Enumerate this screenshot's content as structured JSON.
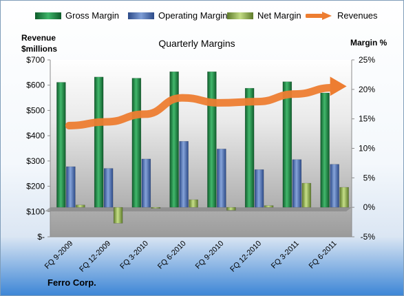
{
  "chart_data": {
    "type": "bar",
    "title": "Quarterly Margins",
    "ylabel_left": "Revenue $millions",
    "ylabel_right": "Margin %",
    "categories": [
      "FQ 9-2009",
      "FQ 12-2009",
      "FQ 3-2010",
      "FQ 6-2010",
      "FQ 9-2010",
      "FQ 12-2010",
      "FQ 3-2011",
      "FQ 6-2011"
    ],
    "ylim_left": [
      0,
      700
    ],
    "ylim_right": [
      -5,
      25
    ],
    "left_ticks": [
      "$-",
      "$100",
      "$200",
      "$300",
      "$400",
      "$500",
      "$600",
      "$700"
    ],
    "right_ticks": [
      "-5%",
      "0%",
      "5%",
      "10%",
      "15%",
      "20%",
      "25%"
    ],
    "grid": false,
    "legend_position": "top",
    "series": [
      {
        "name": "Gross Margin",
        "axis": "right",
        "color": "#1f8a43",
        "values": [
          21.2,
          22.1,
          21.9,
          23.0,
          23.0,
          20.2,
          21.3,
          19.4
        ]
      },
      {
        "name": "Operating Margin",
        "axis": "right",
        "color": "#4f72b8",
        "values": [
          6.9,
          6.6,
          8.2,
          11.2,
          9.9,
          6.4,
          8.1,
          7.3
        ]
      },
      {
        "name": "Net Margin",
        "axis": "right",
        "color": "#9bbb59",
        "values": [
          0.4,
          -2.7,
          -0.1,
          1.3,
          -0.5,
          0.3,
          4.1,
          3.4
        ]
      },
      {
        "name": "Revenues",
        "axis": "left",
        "color": "#ed7d31",
        "type": "line",
        "values": [
          440,
          455,
          485,
          550,
          530,
          535,
          565,
          590
        ]
      }
    ]
  },
  "footer": "Ferro Corp."
}
